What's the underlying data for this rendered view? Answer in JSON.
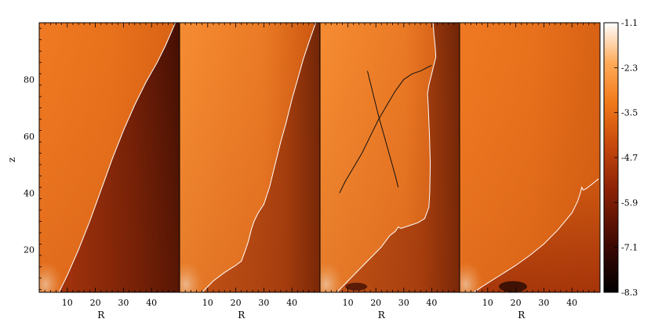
{
  "chart_data": {
    "type": "heatmap",
    "title": "",
    "colormap": "red-temperature",
    "panels": [
      {
        "xlabel": "R",
        "ylabel": "z",
        "xlim": [
          0,
          50
        ],
        "ylim": [
          5,
          100
        ],
        "x_ticks": [
          10,
          20,
          30,
          40
        ],
        "y_ticks": [
          20,
          40,
          60,
          80
        ],
        "contours": [
          {
            "color": "#ffffff",
            "x": [
              7,
              10,
              14,
              18,
              22,
              26,
              30,
              34,
              38,
              42,
              45,
              48.5
            ],
            "z": [
              5,
              11,
              20,
              30,
              41,
              52,
              62,
              71,
              79,
              86,
              92,
              100
            ]
          }
        ]
      },
      {
        "xlabel": "R",
        "ylabel": "",
        "xlim": [
          0,
          50
        ],
        "ylim": [
          5,
          100
        ],
        "x_ticks": [
          10,
          20,
          30,
          40
        ],
        "y_ticks": [],
        "contours": [
          {
            "color": "#ffffff",
            "x": [
              8,
              12,
              16,
              20,
              22,
              23.5,
              24.5,
              25.5,
              26.5,
              28,
              30,
              32,
              34,
              36,
              38,
              40,
              42,
              44,
              46,
              48.5
            ],
            "z": [
              5,
              9,
              12,
              14.5,
              16,
              20,
              23,
              27,
              30,
              33,
              36,
              42,
              50,
              58,
              65,
              73,
              80,
              87,
              93,
              100
            ]
          }
        ]
      },
      {
        "xlabel": "R",
        "ylabel": "",
        "xlim": [
          0,
          50
        ],
        "ylim": [
          5,
          100
        ],
        "x_ticks": [
          10,
          20,
          30,
          40
        ],
        "y_ticks": [],
        "contours": [
          {
            "color": "#ffffff",
            "x": [
              6,
              10,
              14,
              18,
              22,
              25,
              27,
              28,
              29,
              32,
              35,
              37.5,
              39,
              39.3,
              39.5,
              39.2,
              38.8,
              38.5,
              39,
              39.5,
              40,
              40.5,
              41,
              41.5,
              41.2,
              40.8,
              40.5
            ],
            "z": [
              5,
              9,
              13,
              17,
              21,
              25,
              26.5,
              28,
              27.5,
              28.5,
              29.5,
              31,
              35,
              40,
              50,
              60,
              70,
              75,
              78,
              80,
              82,
              84,
              86,
              88,
              92,
              96,
              100
            ]
          },
          {
            "color": "#111111",
            "x": [
              7,
              9,
              12,
              15,
              18,
              21,
              24,
              27,
              30,
              33,
              36,
              40
            ],
            "z": [
              40,
              44,
              49,
              54,
              60,
              66,
              71,
              76,
              80,
              82,
              83,
              85
            ]
          },
          {
            "color": "#111111",
            "x": [
              17,
              19,
              21,
              23,
              25,
              27,
              28
            ],
            "z": [
              83,
              75,
              67,
              60,
              53,
              46,
              42
            ]
          }
        ]
      },
      {
        "xlabel": "R",
        "ylabel": "",
        "xlim": [
          0,
          50
        ],
        "ylim": [
          5,
          100
        ],
        "x_ticks": [
          10,
          20,
          30,
          40
        ],
        "y_ticks": [],
        "contours": [
          {
            "color": "#ffffff",
            "x": [
              5,
              8,
              12,
              16,
              20,
              25,
              30,
              35,
              40,
              42,
              43,
              43.5,
              44,
              45,
              47,
              49.5
            ],
            "z": [
              5,
              7,
              9.5,
              12,
              14.5,
              18,
              22,
              27,
              33,
              37,
              40,
              42,
              41,
              41.5,
              43,
              45
            ]
          }
        ]
      }
    ],
    "colorbar": {
      "ticks": [
        -1.1,
        -2.3,
        -3.5,
        -4.7,
        -5.9,
        -7.1,
        -8.3
      ],
      "range": [
        -8.3,
        -1.1
      ]
    }
  }
}
